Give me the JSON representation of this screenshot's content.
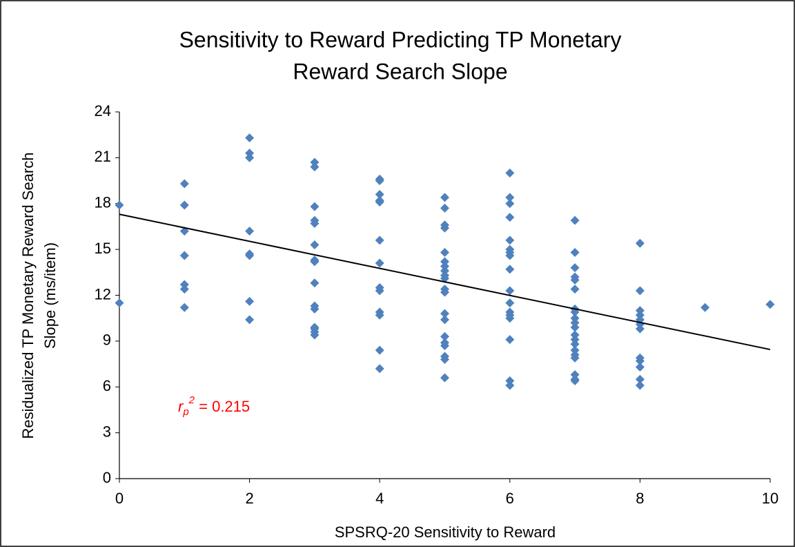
{
  "chart_data": {
    "type": "scatter",
    "title": [
      "Sensitivity to Reward Predicting TP Monetary",
      "Reward Search Slope"
    ],
    "xlabel": "SPSRQ-20 Sensitivity to Reward",
    "ylabel": [
      "Residualized  TP Monetary Reward Search",
      "Slope (ms/item)"
    ],
    "xlim": [
      0,
      10
    ],
    "xticks": [
      0,
      2,
      4,
      6,
      8,
      10
    ],
    "ylim": [
      0,
      24
    ],
    "yticks": [
      0,
      3,
      6,
      9,
      12,
      15,
      18,
      21,
      24
    ],
    "series": [
      {
        "color": "#4f81bd",
        "x": [
          0,
          0,
          1,
          1,
          1,
          1,
          1,
          1,
          1,
          2,
          2,
          2,
          2,
          2,
          2,
          2,
          2,
          3,
          3,
          3,
          3,
          3,
          3,
          3,
          3,
          3,
          3,
          3,
          3,
          3,
          3,
          3,
          4,
          4,
          4,
          4,
          4,
          4,
          4,
          4,
          4,
          4,
          4,
          4,
          4,
          5,
          5,
          5,
          5,
          5,
          5,
          5,
          5,
          5,
          5,
          5,
          5,
          5,
          5,
          5,
          5,
          5,
          5,
          5,
          5,
          6,
          6,
          6,
          6,
          6,
          6,
          6,
          6,
          6,
          6,
          6,
          6,
          6,
          6,
          6,
          6,
          6,
          7,
          7,
          7,
          7,
          7,
          7,
          7,
          7,
          7,
          7,
          7,
          7,
          7,
          7,
          7,
          7,
          7,
          7,
          7,
          7,
          8,
          8,
          8,
          8,
          8,
          8,
          8,
          8,
          8,
          8,
          8,
          8,
          9,
          10
        ],
        "values": [
          17.9,
          11.5,
          19.3,
          17.9,
          16.2,
          14.6,
          12.7,
          12.4,
          11.2,
          22.3,
          21.3,
          21.0,
          16.2,
          14.7,
          14.6,
          11.6,
          10.4,
          20.7,
          20.4,
          17.8,
          16.9,
          16.7,
          15.3,
          14.3,
          14.2,
          12.8,
          11.3,
          11.1,
          9.9,
          9.8,
          9.6,
          9.4,
          19.6,
          19.5,
          18.6,
          18.2,
          18.1,
          15.6,
          14.1,
          12.5,
          12.3,
          10.9,
          10.7,
          8.4,
          7.2,
          18.4,
          17.7,
          16.6,
          16.4,
          14.8,
          14.2,
          13.9,
          13.6,
          13.3,
          13.1,
          12.4,
          12.2,
          10.8,
          10.4,
          9.3,
          8.9,
          8.7,
          8.0,
          7.8,
          6.6,
          20.0,
          18.4,
          18.0,
          17.1,
          15.6,
          15.0,
          14.8,
          14.6,
          13.7,
          12.3,
          11.5,
          10.9,
          10.7,
          10.5,
          9.1,
          6.4,
          6.1,
          16.9,
          14.8,
          13.8,
          13.2,
          13.0,
          12.4,
          11.1,
          10.9,
          10.5,
          10.2,
          9.9,
          9.4,
          9.1,
          8.8,
          8.4,
          8.1,
          7.9,
          6.8,
          6.5,
          6.4,
          15.4,
          12.3,
          11.0,
          10.7,
          10.4,
          10.1,
          9.8,
          7.9,
          7.7,
          7.3,
          6.5,
          6.1,
          11.2,
          11.4
        ]
      }
    ],
    "trendline": {
      "color": "#000000",
      "x": [
        0,
        10
      ],
      "values": [
        17.3,
        8.45
      ]
    },
    "annotation": {
      "base": "r",
      "sub": "p",
      "sup": "2",
      "text": " = 0.215",
      "color": "#ff0000"
    }
  }
}
